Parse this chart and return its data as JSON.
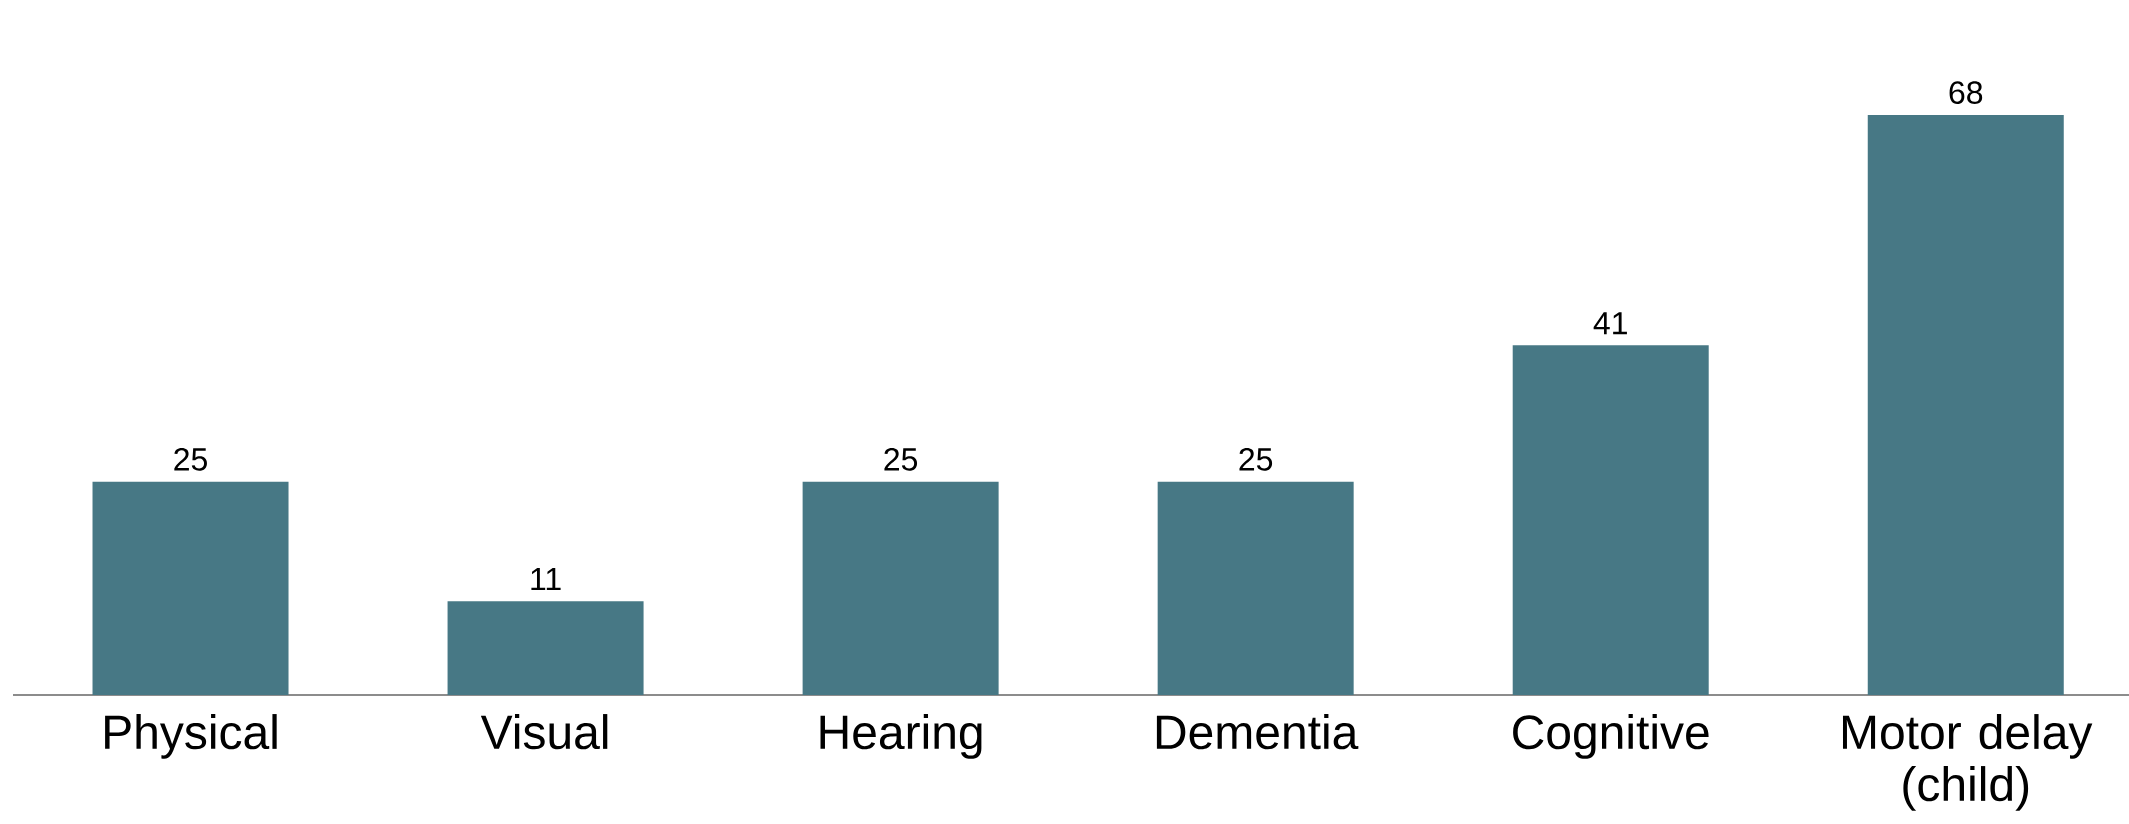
{
  "chart_data": {
    "type": "bar",
    "categories": [
      "Physical",
      "Visual",
      "Hearing",
      "Dementia",
      "Cognitive",
      "Motor delay (child)"
    ],
    "values": [
      25,
      11,
      25,
      25,
      41,
      68
    ],
    "color": "#477885",
    "data_labels": true,
    "tick_labels": "x"
  }
}
